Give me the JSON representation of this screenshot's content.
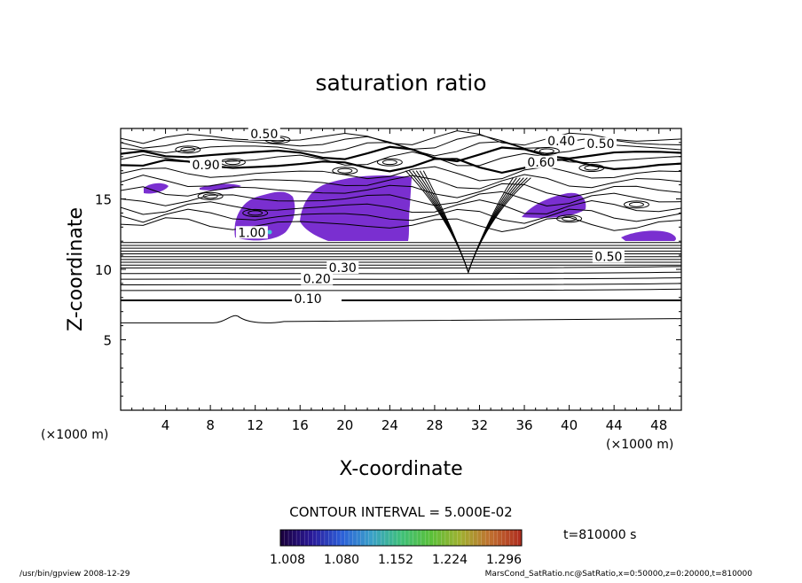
{
  "chart_data": {
    "type": "contour",
    "title": "saturation ratio",
    "xlabel": "X-coordinate",
    "ylabel": "Z-coordinate",
    "x_unit": "(×1000 m)",
    "y_unit": "(×1000 m)",
    "xlim": [
      0,
      50
    ],
    "ylim": [
      0,
      20
    ],
    "x_ticks": [
      4,
      8,
      12,
      16,
      20,
      24,
      28,
      32,
      36,
      40,
      44,
      48
    ],
    "y_ticks": [
      5,
      10,
      15
    ],
    "contour_interval_text": "CONTOUR INTERVAL = 5.000E-02",
    "time_text": "t=810000 s",
    "colorbar_ticks": [
      "1.008",
      "1.080",
      "1.152",
      "1.224",
      "1.296"
    ],
    "colorbar_colors": [
      "#1a0040",
      "#2a1a9a",
      "#2c5fd8",
      "#3aa0c8",
      "#3fc07a",
      "#5ac03a",
      "#a0b030",
      "#c07030",
      "#b03020"
    ],
    "fill_color": "#7a2fd0",
    "contour_labels": [
      {
        "text": "0.10",
        "x": 16.7,
        "z": 7.8
      },
      {
        "text": "0.20",
        "x": 17.5,
        "z": 9.2
      },
      {
        "text": "0.30",
        "x": 19.8,
        "z": 10.0
      },
      {
        "text": "0.50",
        "x": 43.5,
        "z": 10.8
      },
      {
        "text": "0.50",
        "x": 12.8,
        "z": 19.5
      },
      {
        "text": "0.40",
        "x": 39.3,
        "z": 19.0
      },
      {
        "text": "0.50",
        "x": 42.8,
        "z": 18.8
      },
      {
        "text": "0.60",
        "x": 37.5,
        "z": 17.5
      },
      {
        "text": "0.90",
        "x": 7.6,
        "z": 17.3
      },
      {
        "text": "1.00",
        "x": 11.7,
        "z": 12.5
      }
    ],
    "footer_left": "/usr/bin/gpview  2008-12-29",
    "footer_right": "MarsCond_SatRatio.nc@SatRatio,x=0:50000,z=0:20000,t=810000"
  }
}
